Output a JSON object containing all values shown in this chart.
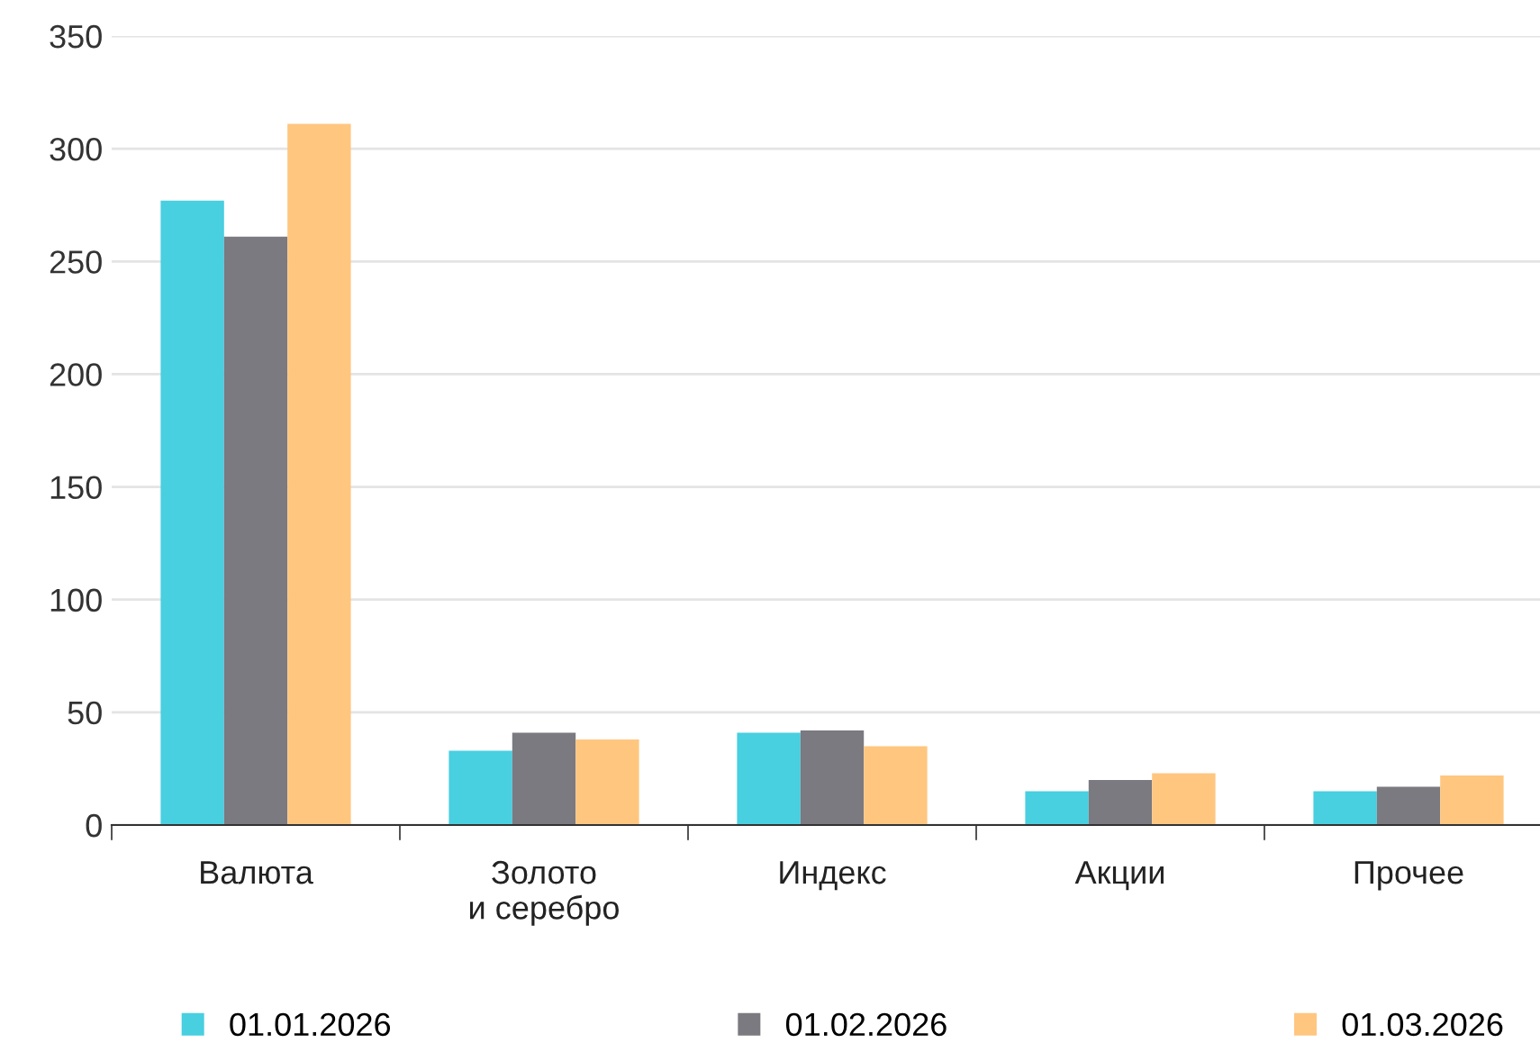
{
  "chart_data": {
    "type": "bar",
    "categories": [
      "Валюта",
      "Золото\nи серебро",
      "Индекс",
      "Акции",
      "Прочее"
    ],
    "series": [
      {
        "name": "01.01.2026",
        "color": "#48cfe0",
        "values": [
          277,
          33,
          41,
          15,
          15
        ]
      },
      {
        "name": "01.02.2026",
        "color": "#7a7a80",
        "values": [
          261,
          41,
          42,
          20,
          17
        ]
      },
      {
        "name": "01.03.2026",
        "color": "#ffc680",
        "values": [
          311,
          38,
          35,
          23,
          22
        ]
      }
    ],
    "ylim": [
      0,
      350
    ],
    "yticks": [
      0,
      50,
      100,
      150,
      200,
      250,
      300,
      350
    ],
    "grid": "y",
    "legend": "bottom"
  }
}
